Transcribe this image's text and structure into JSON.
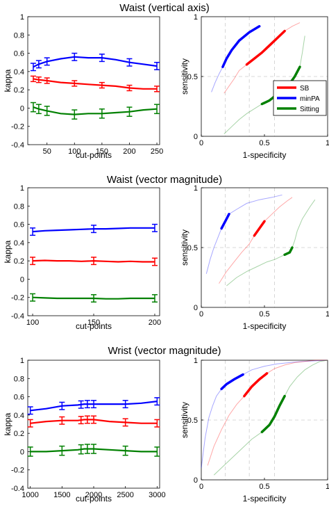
{
  "panels": [
    {
      "title": "Waist (vertical axis)"
    },
    {
      "title": "Waist (vector magnitude)"
    },
    {
      "title": "Wrist (vector magnitude)"
    }
  ],
  "colors": {
    "SB": "#ff0000",
    "minPA": "#0000ff",
    "Sitting": "#008000"
  },
  "chart_data": [
    {
      "type": "line",
      "title": "Waist (vertical axis)",
      "xlabel": "cut-points",
      "ylabel": "kappa",
      "xlim": [
        15,
        255
      ],
      "ylim": [
        -0.4,
        1
      ],
      "xticks": [
        50,
        100,
        150,
        200,
        250
      ],
      "yticks": [
        -0.4,
        -0.2,
        0,
        0.2,
        0.4,
        0.6,
        0.8,
        1
      ],
      "grid": false,
      "error_bars": true,
      "series": [
        {
          "key": "minPA",
          "x": [
            25,
            35,
            50,
            75,
            100,
            125,
            150,
            175,
            200,
            225,
            250
          ],
          "y": [
            0.45,
            0.48,
            0.51,
            0.54,
            0.56,
            0.55,
            0.55,
            0.53,
            0.5,
            0.48,
            0.46
          ],
          "markers": [
            25,
            35,
            50,
            100,
            150,
            200,
            250
          ],
          "err": 0.04
        },
        {
          "key": "SB",
          "x": [
            25,
            35,
            50,
            75,
            100,
            125,
            150,
            175,
            200,
            225,
            250
          ],
          "y": [
            0.32,
            0.31,
            0.3,
            0.28,
            0.27,
            0.26,
            0.25,
            0.24,
            0.22,
            0.21,
            0.21
          ],
          "markers": [
            25,
            35,
            50,
            100,
            150,
            200,
            250
          ],
          "err": 0.03
        },
        {
          "key": "Sitting",
          "x": [
            25,
            35,
            50,
            75,
            100,
            125,
            150,
            175,
            200,
            225,
            250
          ],
          "y": [
            0.01,
            -0.01,
            -0.03,
            -0.06,
            -0.07,
            -0.06,
            -0.06,
            -0.05,
            -0.04,
            -0.02,
            -0.01
          ],
          "markers": [
            25,
            35,
            50,
            100,
            150,
            200,
            250
          ],
          "err": 0.05
        }
      ]
    },
    {
      "type": "line",
      "title": "Waist (vertical axis)",
      "xlabel": "1-specificity",
      "ylabel": "sensitivity",
      "xlim": [
        0,
        1
      ],
      "ylim": [
        0,
        1
      ],
      "xticks": [
        0,
        0.5,
        1
      ],
      "yticks": [
        0,
        0.5,
        1
      ],
      "grid": true,
      "gridlines_x": [
        0.19,
        0.38,
        0.58
      ],
      "legend": {
        "entries": [
          "SB",
          "minPA",
          "Sitting"
        ],
        "placement": "right"
      },
      "series": [
        {
          "key": "minPA",
          "x": [
            0.08,
            0.11,
            0.14,
            0.17,
            0.2,
            0.24,
            0.3,
            0.38,
            0.46
          ],
          "y": [
            0.37,
            0.45,
            0.52,
            0.58,
            0.65,
            0.72,
            0.8,
            0.87,
            0.92
          ],
          "thick_from": 0.17
        },
        {
          "key": "SB",
          "x": [
            0.18,
            0.22,
            0.26,
            0.3,
            0.36,
            0.42,
            0.48,
            0.54,
            0.6,
            0.66,
            0.72,
            0.78
          ],
          "y": [
            0.36,
            0.42,
            0.48,
            0.55,
            0.6,
            0.65,
            0.7,
            0.76,
            0.82,
            0.88,
            0.92,
            0.95
          ],
          "thick_range": [
            0.36,
            0.66
          ]
        },
        {
          "key": "Sitting",
          "x": [
            0.18,
            0.24,
            0.3,
            0.36,
            0.42,
            0.48,
            0.54,
            0.6,
            0.66,
            0.7,
            0.74,
            0.78,
            0.8,
            0.82
          ],
          "y": [
            0.02,
            0.08,
            0.14,
            0.19,
            0.23,
            0.27,
            0.3,
            0.35,
            0.4,
            0.44,
            0.5,
            0.58,
            0.7,
            0.84
          ],
          "thick_range": [
            0.48,
            0.78
          ]
        }
      ]
    },
    {
      "type": "line",
      "title": "Waist (vector magnitude)",
      "xlabel": "cut-points",
      "ylabel": "kappa",
      "xlim": [
        96,
        204
      ],
      "ylim": [
        -0.4,
        1
      ],
      "xticks": [
        100,
        150,
        200
      ],
      "yticks": [
        -0.4,
        -0.2,
        0,
        0.2,
        0.4,
        0.6,
        0.8,
        1
      ],
      "grid": false,
      "error_bars": true,
      "series": [
        {
          "key": "minPA",
          "x": [
            100,
            110,
            120,
            130,
            140,
            150,
            160,
            170,
            180,
            190,
            200
          ],
          "y": [
            0.52,
            0.53,
            0.535,
            0.54,
            0.545,
            0.55,
            0.55,
            0.555,
            0.56,
            0.56,
            0.56
          ],
          "markers": [
            100,
            150,
            200
          ],
          "err": 0.04
        },
        {
          "key": "SB",
          "x": [
            100,
            110,
            120,
            130,
            140,
            150,
            160,
            170,
            180,
            190,
            200
          ],
          "y": [
            0.2,
            0.205,
            0.2,
            0.2,
            0.195,
            0.2,
            0.195,
            0.19,
            0.195,
            0.19,
            0.19
          ],
          "markers": [
            100,
            150,
            200
          ],
          "err": 0.04
        },
        {
          "key": "Sitting",
          "x": [
            100,
            110,
            120,
            130,
            140,
            150,
            160,
            170,
            180,
            190,
            200
          ],
          "y": [
            -0.2,
            -0.205,
            -0.21,
            -0.21,
            -0.21,
            -0.21,
            -0.215,
            -0.215,
            -0.21,
            -0.21,
            -0.21
          ],
          "markers": [
            100,
            150,
            200
          ],
          "err": 0.04
        }
      ]
    },
    {
      "type": "line",
      "title": "Waist (vector magnitude)",
      "xlabel": "1-specificity",
      "ylabel": "sensitivity",
      "xlim": [
        0,
        1
      ],
      "ylim": [
        0,
        1
      ],
      "xticks": [
        0,
        0.5,
        1
      ],
      "yticks": [
        0,
        0.5,
        1
      ],
      "grid": true,
      "gridlines_x": [
        0.19,
        0.38,
        0.58
      ],
      "series": [
        {
          "key": "minPA",
          "x": [
            0.04,
            0.07,
            0.1,
            0.13,
            0.16,
            0.19,
            0.22,
            0.28,
            0.36,
            0.46,
            0.56,
            0.64
          ],
          "y": [
            0.28,
            0.4,
            0.5,
            0.58,
            0.66,
            0.72,
            0.78,
            0.82,
            0.87,
            0.9,
            0.92,
            0.94
          ],
          "thick_range": [
            0.16,
            0.22
          ]
        },
        {
          "key": "SB",
          "x": [
            0.14,
            0.2,
            0.26,
            0.32,
            0.38,
            0.42,
            0.46,
            0.5,
            0.56,
            0.62,
            0.68,
            0.72
          ],
          "y": [
            0.2,
            0.3,
            0.38,
            0.46,
            0.53,
            0.6,
            0.66,
            0.72,
            0.78,
            0.84,
            0.89,
            0.92
          ],
          "thick_range": [
            0.42,
            0.5
          ]
        },
        {
          "key": "Sitting",
          "x": [
            0.2,
            0.28,
            0.36,
            0.44,
            0.52,
            0.58,
            0.62,
            0.66,
            0.7,
            0.72,
            0.74,
            0.76,
            0.8,
            0.86,
            0.9
          ],
          "y": [
            0.18,
            0.25,
            0.3,
            0.34,
            0.38,
            0.4,
            0.42,
            0.44,
            0.46,
            0.5,
            0.56,
            0.64,
            0.74,
            0.84,
            0.9
          ],
          "thick_range": [
            0.66,
            0.72
          ]
        }
      ]
    },
    {
      "type": "line",
      "title": "Wrist (vector magnitude)",
      "xlabel": "cut-points",
      "ylabel": "kappa",
      "xlim": [
        960,
        3040
      ],
      "ylim": [
        -0.4,
        1
      ],
      "xticks": [
        1000,
        1500,
        2000,
        2500,
        3000
      ],
      "yticks": [
        -0.4,
        -0.2,
        0,
        0.2,
        0.4,
        0.6,
        0.8,
        1
      ],
      "grid": false,
      "error_bars": true,
      "series": [
        {
          "key": "minPA",
          "x": [
            1000,
            1250,
            1500,
            1750,
            1850,
            2000,
            2250,
            2500,
            2750,
            3000
          ],
          "y": [
            0.45,
            0.47,
            0.5,
            0.51,
            0.52,
            0.52,
            0.52,
            0.52,
            0.53,
            0.55
          ],
          "markers": [
            1000,
            1500,
            1800,
            1900,
            2000,
            2500,
            3000
          ],
          "err": 0.04
        },
        {
          "key": "SB",
          "x": [
            1000,
            1250,
            1500,
            1750,
            1850,
            2000,
            2250,
            2500,
            2750,
            3000
          ],
          "y": [
            0.31,
            0.33,
            0.34,
            0.34,
            0.35,
            0.35,
            0.33,
            0.32,
            0.31,
            0.31
          ],
          "markers": [
            1000,
            1500,
            1800,
            1900,
            2000,
            2500,
            3000
          ],
          "err": 0.04
        },
        {
          "key": "Sitting",
          "x": [
            1000,
            1250,
            1500,
            1750,
            1850,
            2000,
            2250,
            2500,
            2750,
            3000
          ],
          "y": [
            0.0,
            0.0,
            0.01,
            0.02,
            0.03,
            0.03,
            0.02,
            0.01,
            0.0,
            0.0
          ],
          "markers": [
            1000,
            1500,
            1800,
            1900,
            2000,
            2500,
            3000
          ],
          "err": 0.05
        }
      ]
    },
    {
      "type": "line",
      "title": "Wrist (vector magnitude)",
      "xlabel": "1-specificity",
      "ylabel": "sensitivity",
      "xlim": [
        0,
        1
      ],
      "ylim": [
        0,
        1
      ],
      "xticks": [
        0,
        0.5,
        1
      ],
      "yticks": [
        0,
        0.5,
        1
      ],
      "grid": true,
      "gridlines_x": [
        0.19,
        0.38,
        0.58
      ],
      "series": [
        {
          "key": "minPA",
          "x": [
            0.0,
            0.03,
            0.06,
            0.09,
            0.12,
            0.16,
            0.2,
            0.26,
            0.33,
            0.4,
            0.5,
            0.6,
            0.7,
            0.8,
            0.9,
            1.0
          ],
          "y": [
            0.1,
            0.35,
            0.52,
            0.62,
            0.7,
            0.76,
            0.8,
            0.84,
            0.88,
            0.92,
            0.95,
            0.97,
            0.98,
            0.99,
            0.995,
            1.0
          ],
          "thick_range": [
            0.16,
            0.35
          ]
        },
        {
          "key": "SB",
          "x": [
            0.05,
            0.1,
            0.16,
            0.22,
            0.28,
            0.34,
            0.4,
            0.46,
            0.52,
            0.58,
            0.66,
            0.74,
            0.82,
            0.9,
            1.0
          ],
          "y": [
            0.12,
            0.28,
            0.42,
            0.54,
            0.63,
            0.7,
            0.78,
            0.84,
            0.89,
            0.93,
            0.96,
            0.98,
            0.99,
            1.0,
            1.0
          ],
          "thick_range": [
            0.34,
            0.52
          ]
        },
        {
          "key": "Sitting",
          "x": [
            0.1,
            0.2,
            0.3,
            0.4,
            0.48,
            0.54,
            0.58,
            0.62,
            0.66,
            0.7,
            0.76,
            0.82,
            0.88,
            0.94,
            1.0
          ],
          "y": [
            0.04,
            0.14,
            0.24,
            0.34,
            0.4,
            0.46,
            0.53,
            0.62,
            0.7,
            0.78,
            0.86,
            0.92,
            0.96,
            0.99,
            1.0
          ],
          "thick_range": [
            0.48,
            0.68
          ]
        }
      ]
    }
  ]
}
